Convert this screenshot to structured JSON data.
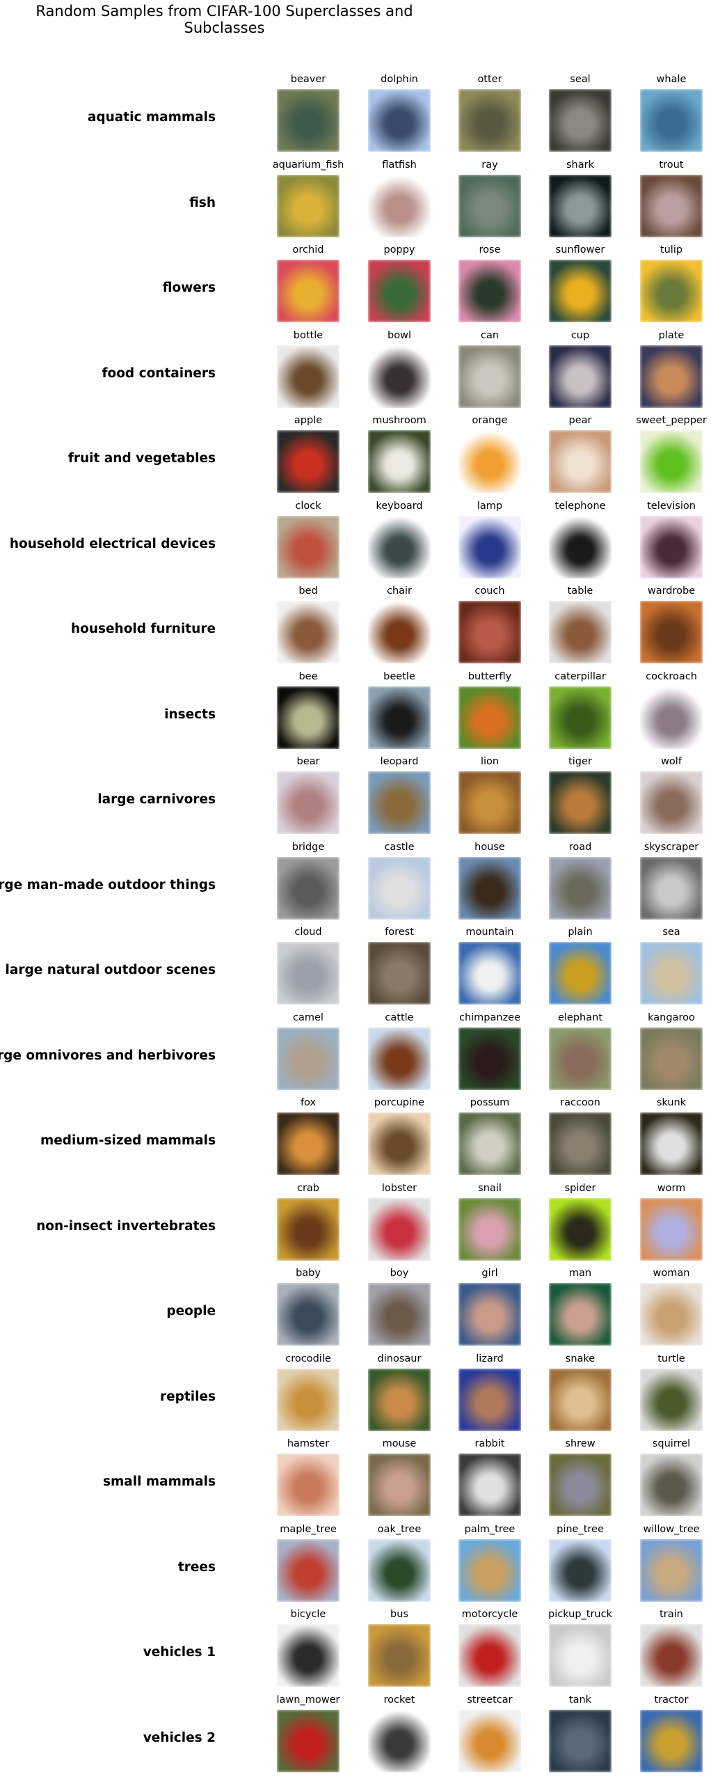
{
  "title": "Random Samples from CIFAR-100 Superclasses and Subclasses",
  "rows": [
    {
      "superclass": "aquatic mammals",
      "items": [
        {
          "label": "beaver",
          "colors": [
            "#6f7a55",
            "#3f5a4a"
          ]
        },
        {
          "label": "dolphin",
          "colors": [
            "#a9c3e8",
            "#3a4a6a"
          ]
        },
        {
          "label": "otter",
          "colors": [
            "#8f8a5a",
            "#5a5840"
          ]
        },
        {
          "label": "seal",
          "colors": [
            "#3a3a34",
            "#8a8a80"
          ]
        },
        {
          "label": "whale",
          "colors": [
            "#6aa7c9",
            "#3a6a90"
          ]
        }
      ]
    },
    {
      "superclass": "fish",
      "items": [
        {
          "label": "aquarium_fish",
          "colors": [
            "#8a8a3a",
            "#d9b23a"
          ]
        },
        {
          "label": "flatfish",
          "colors": [
            "#ffffff",
            "#b9908a"
          ]
        },
        {
          "label": "ray",
          "colors": [
            "#4f6a5a",
            "#7a8a7a"
          ]
        },
        {
          "label": "shark",
          "colors": [
            "#0f1a1a",
            "#8a9a9a"
          ]
        },
        {
          "label": "trout",
          "colors": [
            "#6a4a3a",
            "#b9a0a0"
          ]
        }
      ]
    },
    {
      "superclass": "flowers",
      "items": [
        {
          "label": "orchid",
          "colors": [
            "#d94a5a",
            "#e9b030"
          ]
        },
        {
          "label": "poppy",
          "colors": [
            "#c94050",
            "#3a6a3a"
          ]
        },
        {
          "label": "rose",
          "colors": [
            "#d98aa9",
            "#2a3a2a"
          ]
        },
        {
          "label": "sunflower",
          "colors": [
            "#2a4a3a",
            "#e9b020"
          ]
        },
        {
          "label": "tulip",
          "colors": [
            "#f0c030",
            "#6a7a3a"
          ]
        }
      ]
    },
    {
      "superclass": "food containers",
      "items": [
        {
          "label": "bottle",
          "colors": [
            "#e9e9e9",
            "#6a4a2a"
          ]
        },
        {
          "label": "bowl",
          "colors": [
            "#ffffff",
            "#3a3030"
          ]
        },
        {
          "label": "can",
          "colors": [
            "#8a8a7a",
            "#c9c9c0"
          ]
        },
        {
          "label": "cup",
          "colors": [
            "#2a2a4a",
            "#c9c0c0"
          ]
        },
        {
          "label": "plate",
          "colors": [
            "#3a3a5a",
            "#c98a5a"
          ]
        }
      ]
    },
    {
      "superclass": "fruit and vegetables",
      "items": [
        {
          "label": "apple",
          "colors": [
            "#2a2a2a",
            "#c93020"
          ]
        },
        {
          "label": "mushroom",
          "colors": [
            "#3a4a2a",
            "#e9e9e0"
          ]
        },
        {
          "label": "orange",
          "colors": [
            "#ffffff",
            "#f0a030"
          ]
        },
        {
          "label": "pear",
          "colors": [
            "#c99a7a",
            "#f0e0d0"
          ]
        },
        {
          "label": "sweet_pepper",
          "colors": [
            "#e9f0d0",
            "#60c020"
          ]
        }
      ]
    },
    {
      "superclass": "household electrical devices",
      "items": [
        {
          "label": "clock",
          "colors": [
            "#b9a990",
            "#c05040"
          ]
        },
        {
          "label": "keyboard",
          "colors": [
            "#ffffff",
            "#3a4a4a"
          ]
        },
        {
          "label": "lamp",
          "colors": [
            "#f0f0ff",
            "#2a3a8a"
          ]
        },
        {
          "label": "telephone",
          "colors": [
            "#ffffff",
            "#1a1a1a"
          ]
        },
        {
          "label": "television",
          "colors": [
            "#e9d0e0",
            "#4a2a3a"
          ]
        }
      ]
    },
    {
      "superclass": "household furniture",
      "items": [
        {
          "label": "bed",
          "colors": [
            "#f0f0f0",
            "#8a5a3a"
          ]
        },
        {
          "label": "chair",
          "colors": [
            "#ffffff",
            "#7a3a1a"
          ]
        },
        {
          "label": "couch",
          "colors": [
            "#6a2a1a",
            "#b95a4a"
          ]
        },
        {
          "label": "table",
          "colors": [
            "#e0e0e0",
            "#8a5a3a"
          ]
        },
        {
          "label": "wardrobe",
          "colors": [
            "#c97030",
            "#6a3a1a"
          ]
        }
      ]
    },
    {
      "superclass": "insects",
      "items": [
        {
          "label": "bee",
          "colors": [
            "#0a0a0a",
            "#b9b990"
          ]
        },
        {
          "label": "beetle",
          "colors": [
            "#8aa0b0",
            "#1a1a1a"
          ]
        },
        {
          "label": "butterfly",
          "colors": [
            "#5a8a2a",
            "#d97020"
          ]
        },
        {
          "label": "caterpillar",
          "colors": [
            "#7ab030",
            "#3a5a1a"
          ]
        },
        {
          "label": "cockroach",
          "colors": [
            "#ffffff",
            "#8a7a8a"
          ]
        }
      ]
    },
    {
      "superclass": "large carnivores",
      "items": [
        {
          "label": "bear",
          "colors": [
            "#d9d0d9",
            "#b08080"
          ]
        },
        {
          "label": "leopard",
          "colors": [
            "#7a9ab9",
            "#8a6a3a"
          ]
        },
        {
          "label": "lion",
          "colors": [
            "#8a5a2a",
            "#c9903a"
          ]
        },
        {
          "label": "tiger",
          "colors": [
            "#2a3a2a",
            "#b97a3a"
          ]
        },
        {
          "label": "wolf",
          "colors": [
            "#d9d0d0",
            "#8a6a5a"
          ]
        }
      ]
    },
    {
      "superclass": "large man-made outdoor things",
      "items": [
        {
          "label": "bridge",
          "colors": [
            "#9a9a9a",
            "#5a5a5a"
          ]
        },
        {
          "label": "castle",
          "colors": [
            "#b9c9e0",
            "#e0e0e0"
          ]
        },
        {
          "label": "house",
          "colors": [
            "#6a8ab0",
            "#3a2a1a"
          ]
        },
        {
          "label": "road",
          "colors": [
            "#9aa0b0",
            "#6a6a5a"
          ]
        },
        {
          "label": "skyscraper",
          "colors": [
            "#6a6a6a",
            "#c9c9c9"
          ]
        }
      ]
    },
    {
      "superclass": "large natural outdoor scenes",
      "items": [
        {
          "label": "cloud",
          "colors": [
            "#c9ccd0",
            "#9aa0a9"
          ]
        },
        {
          "label": "forest",
          "colors": [
            "#5a4a3a",
            "#8a7a6a"
          ]
        },
        {
          "label": "mountain",
          "colors": [
            "#3a6ab0",
            "#f0f0f0"
          ]
        },
        {
          "label": "plain",
          "colors": [
            "#4a8ad0",
            "#c9a020"
          ]
        },
        {
          "label": "sea",
          "colors": [
            "#a0c0e0",
            "#d0c0a0"
          ]
        }
      ]
    },
    {
      "superclass": "large omnivores and herbivores",
      "items": [
        {
          "label": "camel",
          "colors": [
            "#9ab0c0",
            "#b0a090"
          ]
        },
        {
          "label": "cattle",
          "colors": [
            "#c9d9e9",
            "#7a3a1a"
          ]
        },
        {
          "label": "chimpanzee",
          "colors": [
            "#2a4a2a",
            "#2a1a1a"
          ]
        },
        {
          "label": "elephant",
          "colors": [
            "#8a9a6a",
            "#8a6a5a"
          ]
        },
        {
          "label": "kangaroo",
          "colors": [
            "#7a7a5a",
            "#a08a6a"
          ]
        }
      ]
    },
    {
      "superclass": "medium-sized mammals",
      "items": [
        {
          "label": "fox",
          "colors": [
            "#3a2a1a",
            "#d9903a"
          ]
        },
        {
          "label": "porcupine",
          "colors": [
            "#e9d0b0",
            "#6a4a2a"
          ]
        },
        {
          "label": "possum",
          "colors": [
            "#5a6a4a",
            "#d0d0c0"
          ]
        },
        {
          "label": "raccoon",
          "colors": [
            "#4a4a3a",
            "#8a8070"
          ]
        },
        {
          "label": "skunk",
          "colors": [
            "#2a2a1a",
            "#e0e0e0"
          ]
        }
      ]
    },
    {
      "superclass": "non-insect invertebrates",
      "items": [
        {
          "label": "crab",
          "colors": [
            "#c99a30",
            "#6a3a1a"
          ]
        },
        {
          "label": "lobster",
          "colors": [
            "#e0e0e0",
            "#c93040"
          ]
        },
        {
          "label": "snail",
          "colors": [
            "#6a8a3a",
            "#d9a0b0"
          ]
        },
        {
          "label": "spider",
          "colors": [
            "#b0e020",
            "#2a2a1a"
          ]
        },
        {
          "label": "worm",
          "colors": [
            "#d9905a",
            "#b0b0e0"
          ]
        }
      ]
    },
    {
      "superclass": "people",
      "items": [
        {
          "label": "baby",
          "colors": [
            "#a9b0b9",
            "#3a4a5a"
          ]
        },
        {
          "label": "boy",
          "colors": [
            "#a0a0a9",
            "#6a5a4a"
          ]
        },
        {
          "label": "girl",
          "colors": [
            "#3a5a8a",
            "#c99a8a"
          ]
        },
        {
          "label": "man",
          "colors": [
            "#1a5a3a",
            "#c9a090"
          ]
        },
        {
          "label": "woman",
          "colors": [
            "#e9e0d9",
            "#c9a070"
          ]
        }
      ]
    },
    {
      "superclass": "reptiles",
      "items": [
        {
          "label": "crocodile",
          "colors": [
            "#e0d0b0",
            "#c9903a"
          ]
        },
        {
          "label": "dinosaur",
          "colors": [
            "#3a5a2a",
            "#c98a4a"
          ]
        },
        {
          "label": "lizard",
          "colors": [
            "#2a3a9a",
            "#b07a5a"
          ]
        },
        {
          "label": "snake",
          "colors": [
            "#a0703a",
            "#e0c090"
          ]
        },
        {
          "label": "turtle",
          "colors": [
            "#d9d9d9",
            "#4a5a2a"
          ]
        }
      ]
    },
    {
      "superclass": "small mammals",
      "items": [
        {
          "label": "hamster",
          "colors": [
            "#f0d0c0",
            "#c97a5a"
          ]
        },
        {
          "label": "mouse",
          "colors": [
            "#7a6a4a",
            "#c9a090"
          ]
        },
        {
          "label": "rabbit",
          "colors": [
            "#3a3a3a",
            "#e0e0e0"
          ]
        },
        {
          "label": "shrew",
          "colors": [
            "#6a6a3a",
            "#8a8a9a"
          ]
        },
        {
          "label": "squirrel",
          "colors": [
            "#d0d0d0",
            "#5a5a4a"
          ]
        }
      ]
    },
    {
      "superclass": "trees",
      "items": [
        {
          "label": "maple_tree",
          "colors": [
            "#a9b0c9",
            "#c04030"
          ]
        },
        {
          "label": "oak_tree",
          "colors": [
            "#c9d9e9",
            "#2a4a2a"
          ]
        },
        {
          "label": "palm_tree",
          "colors": [
            "#6aa9d9",
            "#c9a060"
          ]
        },
        {
          "label": "pine_tree",
          "colors": [
            "#c9d9f0",
            "#2a3a3a"
          ]
        },
        {
          "label": "willow_tree",
          "colors": [
            "#7aa0d0",
            "#c9a980"
          ]
        }
      ]
    },
    {
      "superclass": "vehicles 1",
      "items": [
        {
          "label": "bicycle",
          "colors": [
            "#f0f0f0",
            "#2a2a2a"
          ]
        },
        {
          "label": "bus",
          "colors": [
            "#c99a3a",
            "#8a6a3a"
          ]
        },
        {
          "label": "motorcycle",
          "colors": [
            "#e0e0e0",
            "#c02020"
          ]
        },
        {
          "label": "pickup_truck",
          "colors": [
            "#c9c9c9",
            "#f0f0f0"
          ]
        },
        {
          "label": "train",
          "colors": [
            "#e0e0e0",
            "#8a3a2a"
          ]
        }
      ]
    },
    {
      "superclass": "vehicles 2",
      "items": [
        {
          "label": "lawn_mower",
          "colors": [
            "#5a6a3a",
            "#c02020"
          ]
        },
        {
          "label": "rocket",
          "colors": [
            "#ffffff",
            "#3a3a3a"
          ]
        },
        {
          "label": "streetcar",
          "colors": [
            "#f0f0f0",
            "#d98a30"
          ]
        },
        {
          "label": "tank",
          "colors": [
            "#2a3a4a",
            "#5a6a7a"
          ]
        },
        {
          "label": "tractor",
          "colors": [
            "#3a6ab0",
            "#c9a030"
          ]
        }
      ]
    }
  ]
}
